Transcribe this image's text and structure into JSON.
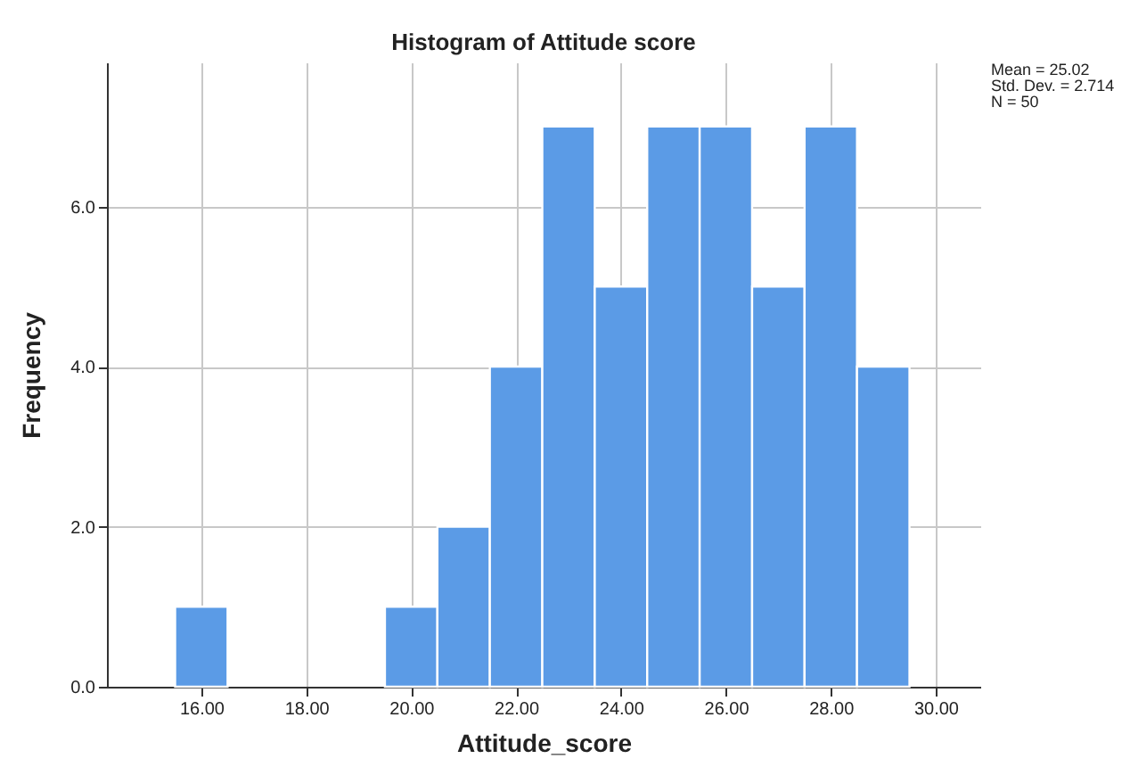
{
  "chart_data": {
    "type": "histogram",
    "title": "Histogram of Attitude score",
    "xlabel": "Attitude_score",
    "ylabel": "Frequency",
    "bins": [
      15.5,
      16.5,
      17.5,
      18.5,
      19.5,
      20.5,
      21.5,
      22.5,
      23.5,
      24.5,
      25.5,
      26.5,
      27.5,
      28.5,
      29.5
    ],
    "values": [
      1,
      0,
      0,
      0,
      1,
      2,
      4,
      7,
      5,
      7,
      7,
      5,
      7,
      4
    ],
    "color": "#5b9be6",
    "xlim": [
      14.2,
      30.85
    ],
    "ylim": [
      0,
      7.8
    ],
    "xticks": [
      {
        "value": 16,
        "label": "16.00"
      },
      {
        "value": 18,
        "label": "18.00"
      },
      {
        "value": 20,
        "label": "20.00"
      },
      {
        "value": 22,
        "label": "22.00"
      },
      {
        "value": 24,
        "label": "24.00"
      },
      {
        "value": 26,
        "label": "26.00"
      },
      {
        "value": 28,
        "label": "28.00"
      },
      {
        "value": 30,
        "label": "30.00"
      }
    ],
    "yticks": [
      {
        "value": 0,
        "label": "0.0"
      },
      {
        "value": 2,
        "label": "2.0"
      },
      {
        "value": 4,
        "label": "4.0"
      },
      {
        "value": 6,
        "label": "6.0"
      }
    ],
    "grid": true,
    "annotations": [
      "Mean = 25.02",
      "Std. Dev. = 2.714",
      "N = 50"
    ]
  }
}
